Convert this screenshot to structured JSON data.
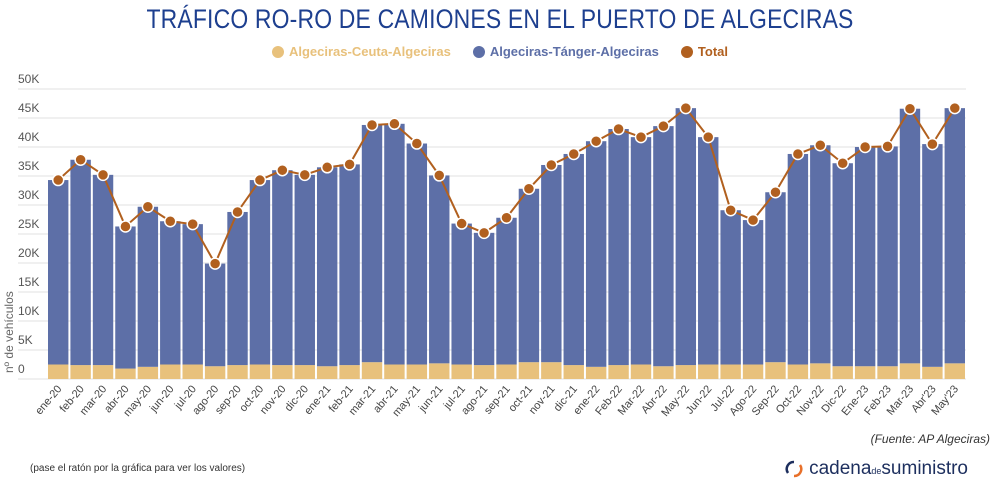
{
  "title": "TRÁFICO RO-RO DE CAMIONES EN EL PUERTO DE ALGECIRAS",
  "source": "(Fuente: AP Algeciras)",
  "hint": "(pase el ratón por la gráfica para ver los valores)",
  "logo": {
    "part1": "cadena",
    "part2": "de",
    "part3": "suministro"
  },
  "colors": {
    "ceuta": "#e8c17c",
    "tanger": "#5d6fa7",
    "total": "#b1601f",
    "title": "#1d3f8f"
  },
  "chart_data": {
    "type": "bar",
    "stacked": true,
    "title": "TRÁFICO RO-RO DE CAMIONES EN EL PUERTO DE ALGECIRAS",
    "ylabel": "nº de vehículos",
    "ylim": [
      0,
      50000
    ],
    "yticks": [
      "0",
      "5K",
      "10K",
      "15K",
      "20K",
      "25K",
      "30K",
      "35K",
      "40K",
      "45K",
      "50K"
    ],
    "grid": true,
    "legend_position": "top",
    "categories": [
      "ene-20",
      "feb-20",
      "mar-20",
      "abr-20",
      "may-20",
      "jun-20",
      "jul-20",
      "ago-20",
      "sep-20",
      "oct-20",
      "nov-20",
      "dic-20",
      "ene-21",
      "feb-21",
      "mar-21",
      "abr-21",
      "may-21",
      "jun-21",
      "jul-21",
      "ago-21",
      "sep-21",
      "oct-21",
      "nov-21",
      "dic-21",
      "ene-22",
      "Feb-22",
      "Mar-22",
      "Abr-22",
      "May-22",
      "Jun-22",
      "Jul-22",
      "Ago-22",
      "Sep-22",
      "Oct-22",
      "Nov-22",
      "Dic-22",
      "Ene-23",
      "Feb-23",
      "Mar-23",
      "Abr'23",
      "May'23"
    ],
    "series": [
      {
        "name": "Algeciras-Ceuta-Algeciras",
        "type": "bar",
        "values": [
          2500,
          2400,
          2400,
          1800,
          2100,
          2500,
          2500,
          2200,
          2400,
          2500,
          2400,
          2400,
          2200,
          2400,
          2900,
          2500,
          2500,
          2700,
          2500,
          2400,
          2500,
          2900,
          2900,
          2400,
          2100,
          2400,
          2500,
          2200,
          2400,
          2500,
          2500,
          2500,
          2900,
          2500,
          2700,
          2200,
          2200,
          2200,
          2700,
          2100,
          2700
        ]
      },
      {
        "name": "Algeciras-Tánger-Algeciras",
        "type": "bar",
        "values": [
          31800,
          35400,
          32800,
          24500,
          27600,
          24700,
          24200,
          17700,
          26400,
          31800,
          33600,
          32800,
          34300,
          34600,
          40900,
          41500,
          38100,
          32400,
          24300,
          22800,
          25300,
          29900,
          34000,
          36400,
          38900,
          40700,
          39200,
          41400,
          44300,
          39200,
          26600,
          24900,
          29300,
          36300,
          37600,
          35000,
          37800,
          37900,
          43900,
          38400,
          44000
        ]
      },
      {
        "name": "Total",
        "type": "line",
        "values": [
          34300,
          37800,
          35200,
          26300,
          29700,
          27200,
          26700,
          19900,
          28800,
          34300,
          36000,
          35200,
          36500,
          37000,
          43800,
          44000,
          40600,
          35100,
          26800,
          25200,
          27800,
          32800,
          36900,
          38800,
          41000,
          43100,
          41700,
          43600,
          46700,
          41700,
          29100,
          27400,
          32200,
          38800,
          40300,
          37200,
          40000,
          40100,
          46600,
          40500,
          46700
        ]
      }
    ]
  }
}
